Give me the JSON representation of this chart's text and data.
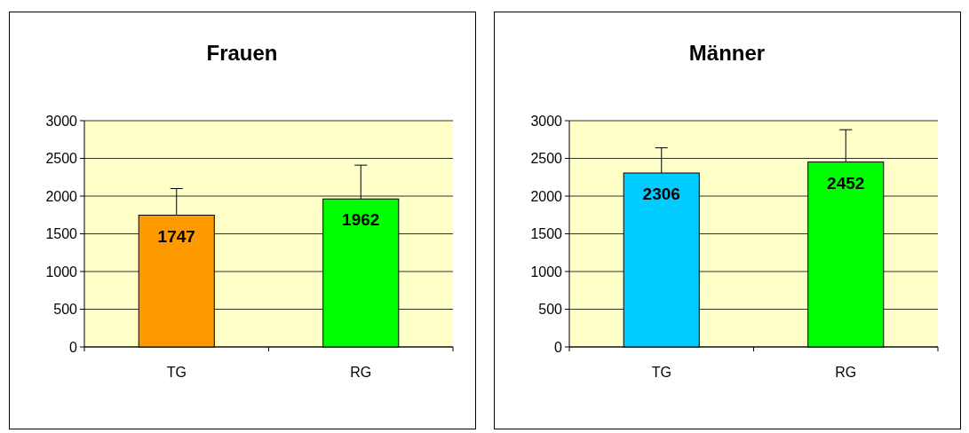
{
  "chart_data": [
    {
      "type": "bar",
      "title": "Frauen",
      "categories": [
        "TG",
        "RG"
      ],
      "values": [
        1747,
        1962
      ],
      "colors": [
        "#ff9900",
        "#00ff00"
      ],
      "errors": [
        [
          1747,
          2100
        ],
        [
          1962,
          2410
        ]
      ],
      "ylim": [
        0,
        3000
      ],
      "yticks": [
        0,
        500,
        1000,
        1500,
        2000,
        2500,
        3000
      ],
      "grid": "y",
      "data_labels": true
    },
    {
      "type": "bar",
      "title": "Männer",
      "categories": [
        "TG",
        "RG"
      ],
      "values": [
        2306,
        2452
      ],
      "colors": [
        "#00ccff",
        "#00ff00"
      ],
      "errors": [
        [
          2306,
          2640
        ],
        [
          2452,
          2880
        ]
      ],
      "ylim": [
        0,
        3000
      ],
      "yticks": [
        0,
        500,
        1000,
        1500,
        2000,
        2500,
        3000
      ],
      "grid": "y",
      "data_labels": true
    }
  ]
}
